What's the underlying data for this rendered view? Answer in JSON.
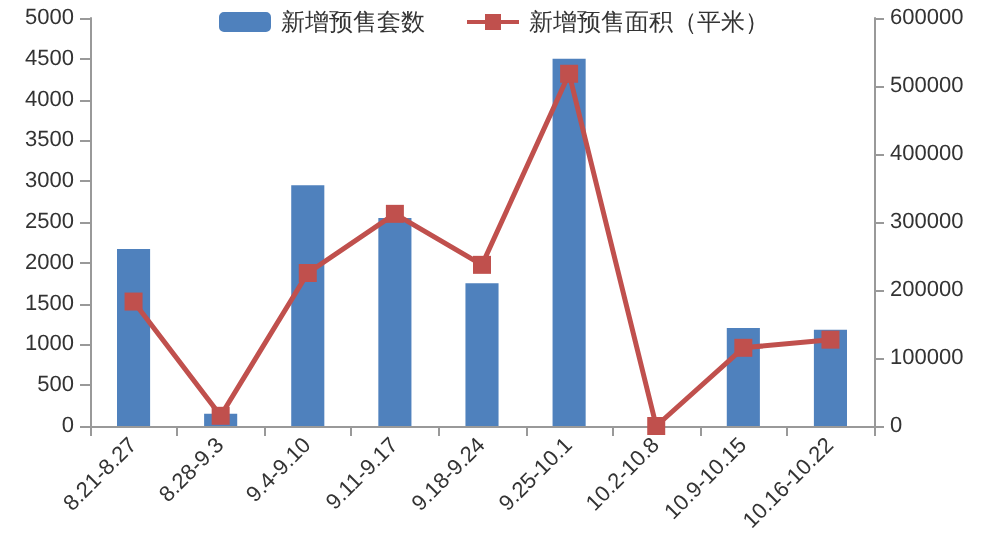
{
  "chart_data": {
    "type": "bar",
    "categories": [
      "8.21-8.27",
      "8.28-9.3",
      "9.4-9.10",
      "9.11-9.17",
      "9.18-9.24",
      "9.25-10.1",
      "10.2-10.8",
      "10.9-10.15",
      "10.16-10.22"
    ],
    "series": [
      {
        "name": "新增预售套数",
        "color": "#4f81bd",
        "values": [
          2170,
          150,
          2950,
          2550,
          1750,
          4500,
          0,
          1200,
          1180
        ]
      },
      {
        "name": "新增预售面积（平米）",
        "type": "line",
        "axis": "y2",
        "color": "#c0504d",
        "marker": "square",
        "values": [
          183000,
          15000,
          225000,
          312000,
          237000,
          518000,
          0,
          115000,
          127000
        ]
      }
    ],
    "ylim": [
      0,
      5000
    ],
    "yticks": [
      0,
      500,
      1000,
      1500,
      2000,
      2500,
      3000,
      3500,
      4000,
      4500,
      5000
    ],
    "y2lim": [
      0,
      600000
    ],
    "y2ticks": [
      0,
      100000,
      200000,
      300000,
      400000,
      500000,
      600000
    ],
    "grid": false,
    "legend": "top"
  }
}
